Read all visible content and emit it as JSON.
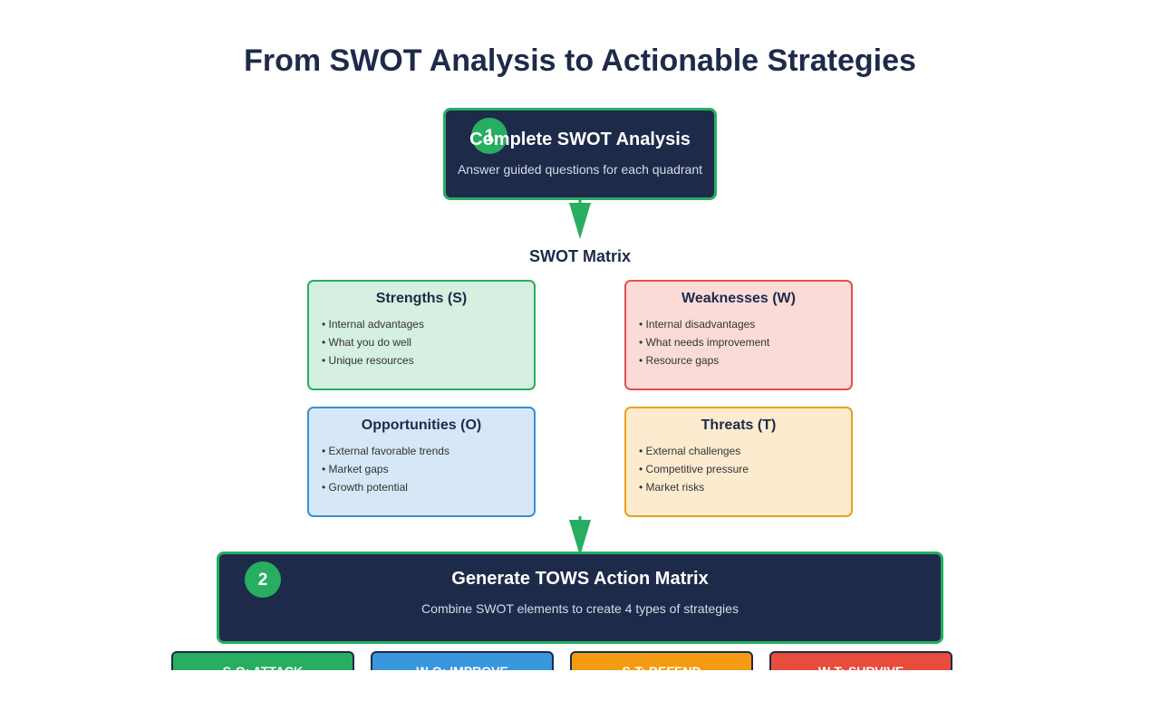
{
  "title": "From SWOT Analysis to Actionable Strategies",
  "step1": {
    "number": "1",
    "title": "Complete SWOT Analysis",
    "description": "Answer guided questions for each quadrant"
  },
  "matrix": {
    "title": "SWOT Matrix",
    "quadrants": [
      {
        "title": "Strengths (S)",
        "items": [
          "• Internal advantages",
          "• What you do well",
          "• Unique resources"
        ]
      },
      {
        "title": "Weaknesses (W)",
        "items": [
          "• Internal disadvantages",
          "• What needs improvement",
          "• Resource gaps"
        ]
      },
      {
        "title": "Opportunities (O)",
        "items": [
          "• External favorable trends",
          "• Market gaps",
          "• Growth potential"
        ]
      },
      {
        "title": "Threats (T)",
        "items": [
          "• External challenges",
          "• Competitive pressure",
          "• Market risks"
        ]
      }
    ]
  },
  "step2": {
    "number": "2",
    "title": "Generate TOWS Action Matrix",
    "description": "Combine SWOT elements to create 4 types of strategies"
  },
  "strategies": [
    {
      "label": "S-O: ATTACK",
      "color": "#27ae60"
    },
    {
      "label": "W-O: IMPROVE",
      "color": "#3a96dd"
    },
    {
      "label": "S-T: DEFEND",
      "color": "#f39c12"
    },
    {
      "label": "W-T: SURVIVE",
      "color": "#e74c3c"
    }
  ],
  "colors": {
    "navy": "#1e2a4a",
    "accent_green": "#27ae60"
  }
}
